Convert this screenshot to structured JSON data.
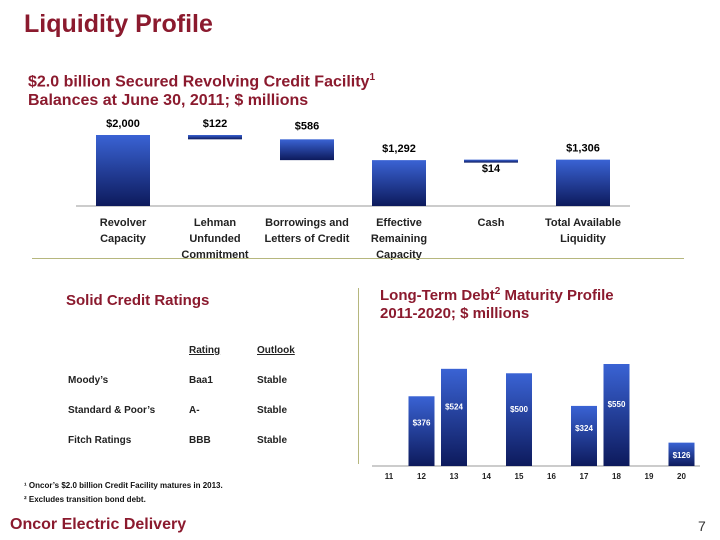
{
  "header": {
    "title": "Liquidity Profile"
  },
  "subtitle": {
    "line1": "$2.0 billion Secured Revolving Credit Facility",
    "line1_sup": "1",
    "line2": "Balances at June 30, 2011; $ millions"
  },
  "ratings_section": {
    "title": "Solid Credit Ratings",
    "headers": {
      "rating": "Rating",
      "outlook": "Outlook"
    },
    "rows": [
      {
        "agency": "Moody’s",
        "rating": "Baa1",
        "outlook": "Stable"
      },
      {
        "agency": "Standard & Poor’s",
        "rating": "A-",
        "outlook": "Stable"
      },
      {
        "agency": "Fitch Ratings",
        "rating": "BBB",
        "outlook": "Stable"
      }
    ]
  },
  "debt_section": {
    "title_line1": "Long-Term Debt",
    "title_sup": "2",
    "title_line1_rest": " Maturity Profile",
    "title_line2": "2011-2020; $ millions"
  },
  "footnotes": {
    "note1": "¹ Oncor’s $2.0 billion Credit Facility matures in 2013.",
    "note2": "² Excludes transition bond debt."
  },
  "footer": {
    "brand": "Oncor Electric Delivery",
    "page": "7"
  },
  "colors": {
    "accent": "#8b1a2e",
    "bar_top": "#3a63d4",
    "bar_bottom": "#0d1a5c",
    "divider": "#b6b77e"
  },
  "chart_data": [
    {
      "type": "bar",
      "subtype": "waterfall",
      "categories": [
        "Revolver\nCapacity",
        "Lehman\nUnfunded\nCommitment",
        "Borrowings and\nLetters of Credit",
        "Effective\nRemaining\nCapacity",
        "Cash",
        "Total Available\nLiquidity"
      ],
      "values": [
        2000,
        122,
        586,
        1292,
        14,
        1306
      ],
      "bar_ranges": [
        [
          0,
          2000
        ],
        [
          1878,
          2000
        ],
        [
          1292,
          1878
        ],
        [
          0,
          1292
        ],
        [
          1292,
          1306
        ],
        [
          0,
          1306
        ]
      ],
      "labels": [
        "$2,000",
        "$122",
        "$586",
        "$1,292",
        "$14",
        "$1,306"
      ],
      "ylim": [
        0,
        2000
      ]
    },
    {
      "type": "bar",
      "categories": [
        "11",
        "12",
        "13",
        "14",
        "15",
        "16",
        "17",
        "18",
        "19",
        "20"
      ],
      "values": [
        0,
        376,
        524,
        0,
        500,
        0,
        324,
        550,
        0,
        126
      ],
      "labels": [
        "",
        "$376",
        "$524",
        "",
        "$500",
        "",
        "$324",
        "$550",
        "",
        "$126"
      ],
      "ylim": [
        0,
        550
      ]
    }
  ]
}
